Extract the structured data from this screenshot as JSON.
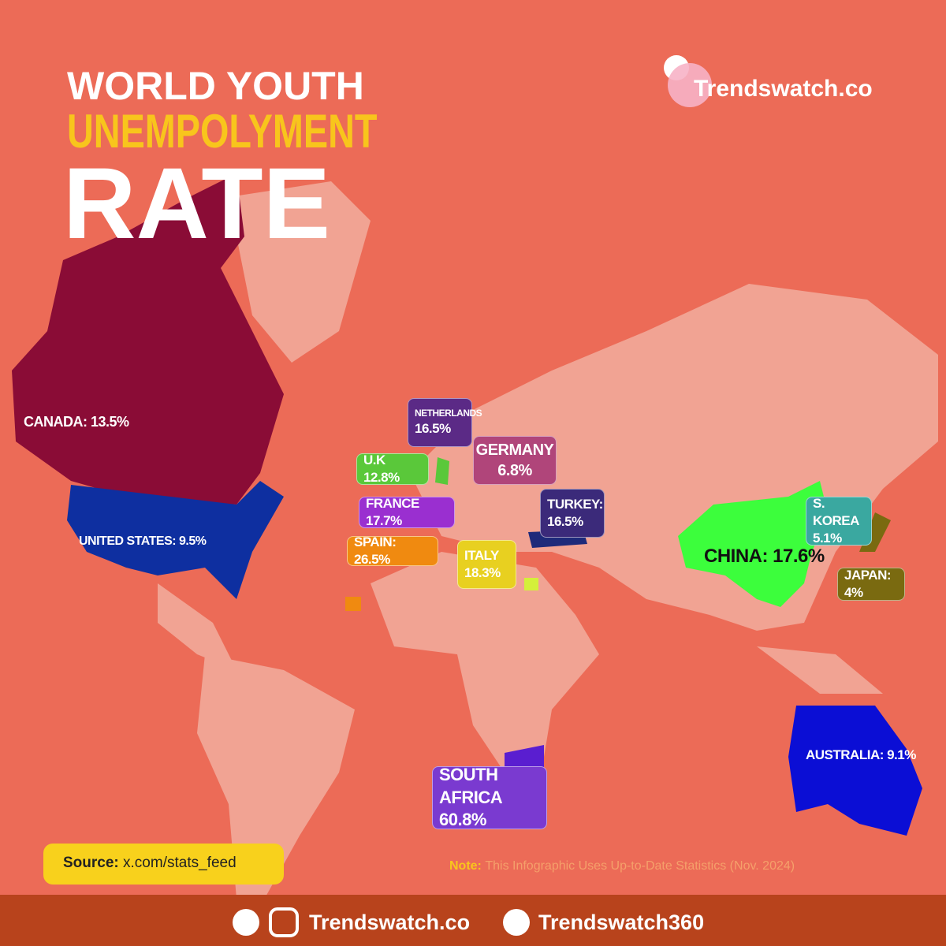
{
  "header": {
    "title_line_1": "WORLD YOUTH",
    "title_line_2": "UNEMPOLYMENT",
    "title_line_3": "RATE"
  },
  "brand": "Trendswatch.co",
  "labels": [
    {
      "lines": [
        "CANADA: 13.5%"
      ]
    },
    {
      "lines": [
        "UNITED STATES: 9.5%"
      ]
    },
    {
      "lines": [
        "NETHERLANDS",
        "16.5%"
      ]
    },
    {
      "lines": [
        "GERMANY",
        "6.8%"
      ]
    },
    {
      "lines": [
        "U.K 12.8%"
      ]
    },
    {
      "lines": [
        "FRANCE 17.7%"
      ]
    },
    {
      "lines": [
        "TURKEY:",
        "16.5%"
      ]
    },
    {
      "lines": [
        "SPAIN: 26.5%"
      ]
    },
    {
      "lines": [
        "ITALY",
        "18.3%"
      ]
    },
    {
      "lines": [
        "CHINA: 17.6%"
      ]
    },
    {
      "lines": [
        "S. KOREA",
        "5.1%"
      ]
    },
    {
      "lines": [
        "JAPAN: 4%"
      ]
    },
    {
      "lines": [
        "AUSTRALIA: 9.1%"
      ]
    },
    {
      "lines": [
        "SOUTH AFRICA",
        "60.8%"
      ]
    }
  ],
  "source": {
    "label": "Source:",
    "value": "x.com/stats_feed"
  },
  "note": {
    "label": "Note:",
    "text": "This Infographic Uses Up-to-Date Statistics (Nov. 2024)"
  },
  "footer": {
    "website": "Trendswatch.co",
    "handle": "Trendswatch360"
  }
}
